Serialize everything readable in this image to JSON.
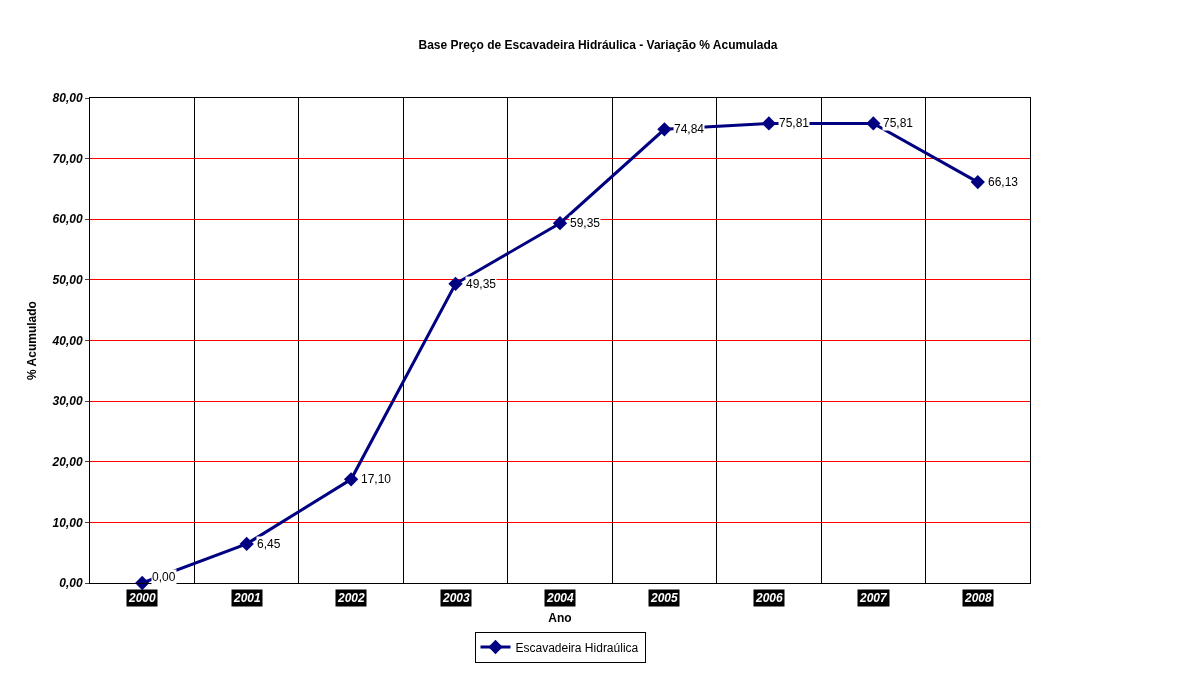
{
  "chart_data": {
    "type": "line",
    "title": "Base Preço de Escavadeira Hidráulica - Variação % Acumulada",
    "xlabel": "Ano",
    "ylabel": "% Acumulado",
    "categories": [
      "2000",
      "2001",
      "2002",
      "2003",
      "2004",
      "2005",
      "2006",
      "2007",
      "2008"
    ],
    "series": [
      {
        "name": "Escavadeira Hidraúlica",
        "color": "#000080",
        "values": [
          0.0,
          6.45,
          17.1,
          49.35,
          59.35,
          74.84,
          75.81,
          75.81,
          66.13
        ],
        "value_labels": [
          "0,00",
          "6,45",
          "17,10",
          "49,35",
          "59,35",
          "74,84",
          "75,81",
          "75,81",
          "66,13"
        ]
      }
    ],
    "ylim": [
      0,
      80
    ],
    "yticks": [
      {
        "value": 0,
        "label": "0,00"
      },
      {
        "value": 10,
        "label": "10,00"
      },
      {
        "value": 20,
        "label": "20,00"
      },
      {
        "value": 30,
        "label": "30,00"
      },
      {
        "value": 40,
        "label": "40,00"
      },
      {
        "value": 50,
        "label": "50,00"
      },
      {
        "value": 60,
        "label": "60,00"
      },
      {
        "value": 70,
        "label": "70,00"
      },
      {
        "value": 80,
        "label": "80,00"
      }
    ],
    "grid": true,
    "legend": "bottom",
    "marker": "diamond",
    "line_style": "solid"
  }
}
